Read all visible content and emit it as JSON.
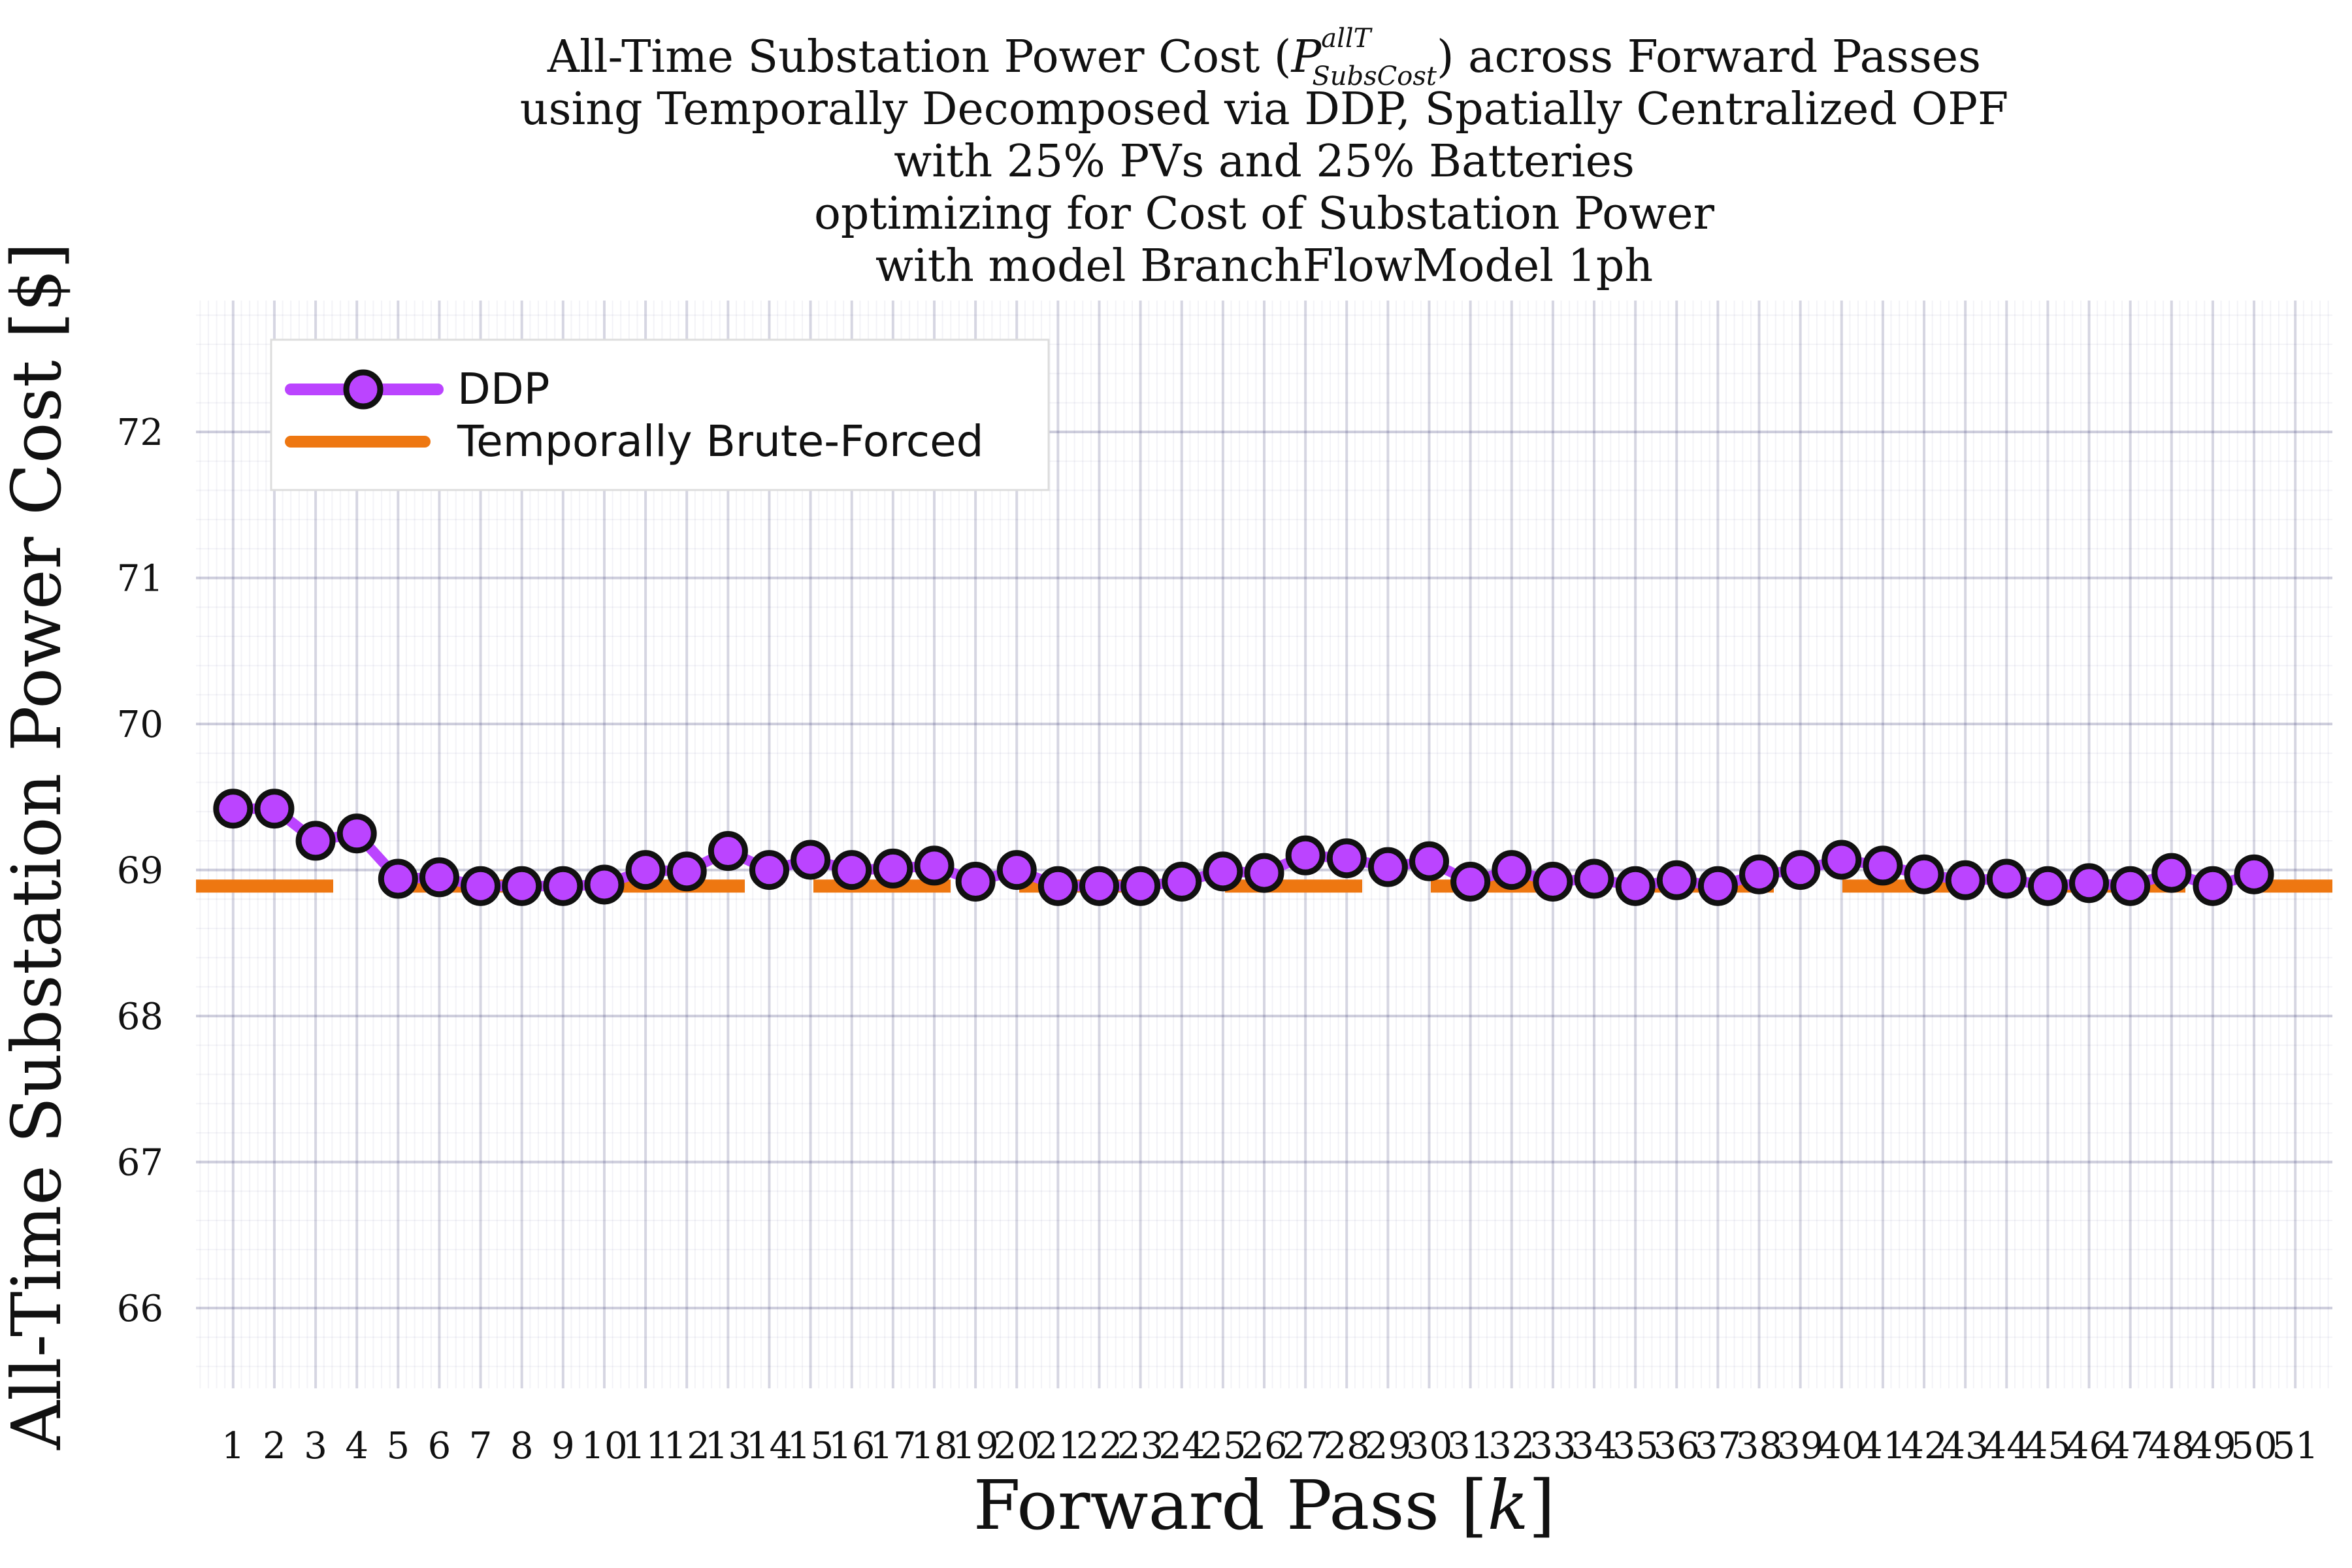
{
  "chart_data": {
    "type": "line",
    "title_lines": [
      "All-Time Substation Power Cost (P",
      "using Temporally Decomposed via DDP, Spatially Centralized OPF",
      "with 25% PVs and 25% Batteries",
      "optimizing for Cost of Substation Power",
      "with model BranchFlowModel 1ph"
    ],
    "title_line1": {
      "prefix": "All-Time Substation Power Cost (",
      "symbol": "P",
      "superscript": "allT",
      "subscript": "SubsCost",
      "suffix": ") across Forward Passes"
    },
    "xlabel": "Forward Pass [k]",
    "ylabel": "All-Time Substation Power Cost [$]",
    "xlim": [
      0.1,
      51.9
    ],
    "ylim": [
      65.45,
      72.9
    ],
    "yticks": [
      66,
      67,
      68,
      69,
      70,
      71,
      72
    ],
    "xticks": [
      1,
      2,
      3,
      4,
      5,
      6,
      7,
      8,
      9,
      10,
      11,
      12,
      13,
      14,
      15,
      16,
      17,
      18,
      19,
      20,
      21,
      22,
      23,
      24,
      25,
      26,
      27,
      28,
      29,
      30,
      31,
      32,
      33,
      34,
      35,
      36,
      37,
      38,
      39,
      40,
      41,
      42,
      43,
      44,
      45,
      46,
      47,
      48,
      49,
      50,
      51
    ],
    "grid": true,
    "legend_position": "top-left",
    "series": [
      {
        "name": "DDP",
        "color": "#bb44ff",
        "marker": "circle",
        "x": [
          1,
          2,
          3,
          4,
          5,
          6,
          7,
          8,
          9,
          10,
          11,
          12,
          13,
          14,
          15,
          16,
          17,
          18,
          19,
          20,
          21,
          22,
          23,
          24,
          25,
          26,
          27,
          28,
          29,
          30,
          31,
          32,
          33,
          34,
          35,
          36,
          37,
          38,
          39,
          40,
          41,
          42,
          43,
          44,
          45,
          46,
          47,
          48,
          49,
          50
        ],
        "y": [
          69.42,
          69.42,
          69.2,
          69.25,
          68.94,
          68.95,
          68.89,
          68.89,
          68.89,
          68.9,
          69.0,
          68.99,
          69.13,
          69.0,
          69.07,
          69.0,
          69.01,
          69.03,
          68.92,
          69.0,
          68.89,
          68.89,
          68.89,
          68.92,
          68.99,
          68.98,
          69.1,
          69.08,
          69.02,
          69.06,
          68.92,
          69.0,
          68.92,
          68.94,
          68.89,
          68.93,
          68.89,
          68.97,
          69.0,
          69.07,
          69.03,
          68.97,
          68.93,
          68.94,
          68.89,
          68.91,
          68.89,
          68.98,
          68.89,
          68.97
        ]
      },
      {
        "name": "Temporally Brute-Forced",
        "color": "#ee7711",
        "style": "dashed",
        "value": 68.89
      }
    ]
  }
}
